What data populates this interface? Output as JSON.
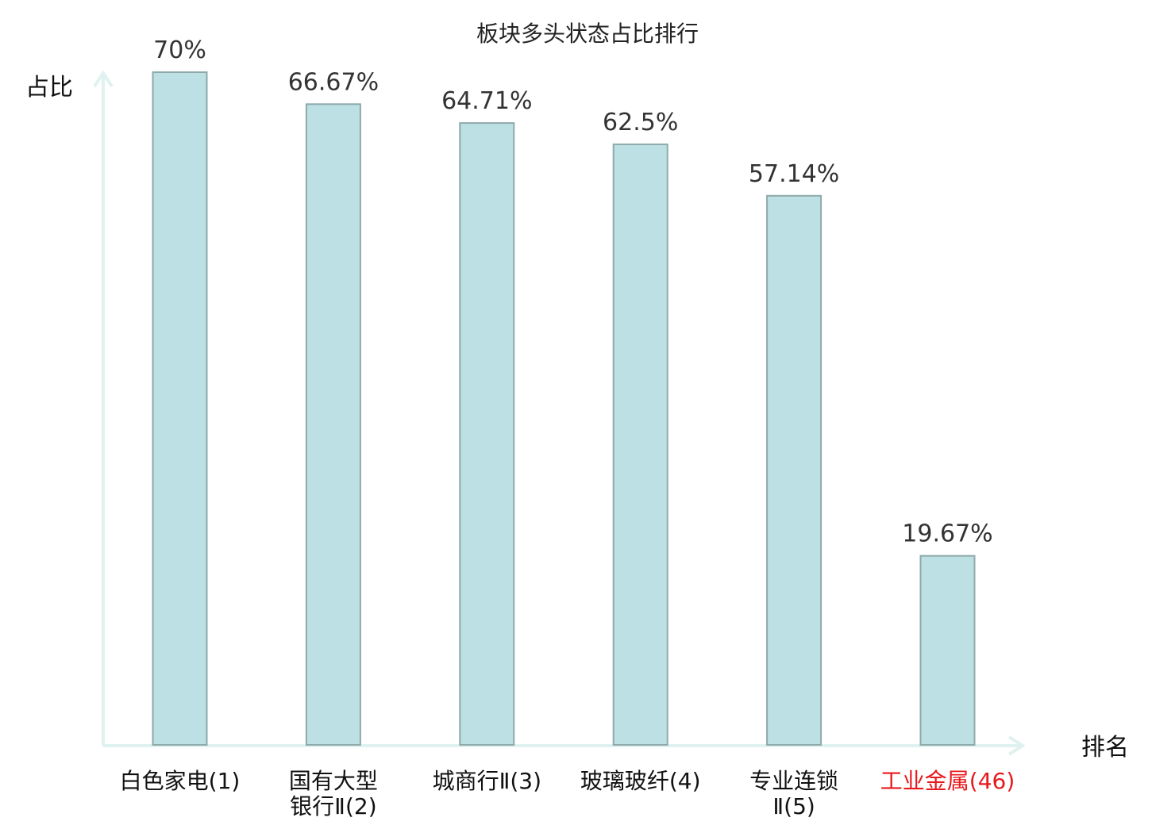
{
  "chart_data": {
    "type": "bar",
    "title": "板块多头状态占比排行",
    "ylabel": "占比",
    "xlabel": "排名",
    "categories": [
      {
        "lines": [
          "白色家电",
          "(1)"
        ],
        "highlight": false
      },
      {
        "lines": [
          "国有大型",
          "银行Ⅱ(2)"
        ],
        "highlight": false
      },
      {
        "lines": [
          "城商行Ⅱ",
          "(3)"
        ],
        "highlight": false
      },
      {
        "lines": [
          "玻璃玻纤",
          "(4)"
        ],
        "highlight": false
      },
      {
        "lines": [
          "专业连锁",
          "Ⅱ(5)"
        ],
        "highlight": false
      },
      {
        "lines": [
          "工业金属",
          "(46)"
        ],
        "highlight": true
      }
    ],
    "values": [
      70,
      66.67,
      64.71,
      62.5,
      57.14,
      19.67
    ],
    "value_labels": [
      "70%",
      "66.67%",
      "64.71%",
      "62.5%",
      "57.14%",
      "19.67%"
    ],
    "ylim": [
      0,
      70
    ],
    "grid": false,
    "colors": {
      "bar_fill": "#bce0e3",
      "bar_stroke": "#8fa9ab",
      "axis": "#dff2ef",
      "highlight_text": "#e8191d",
      "normal_text": "#111111"
    }
  }
}
